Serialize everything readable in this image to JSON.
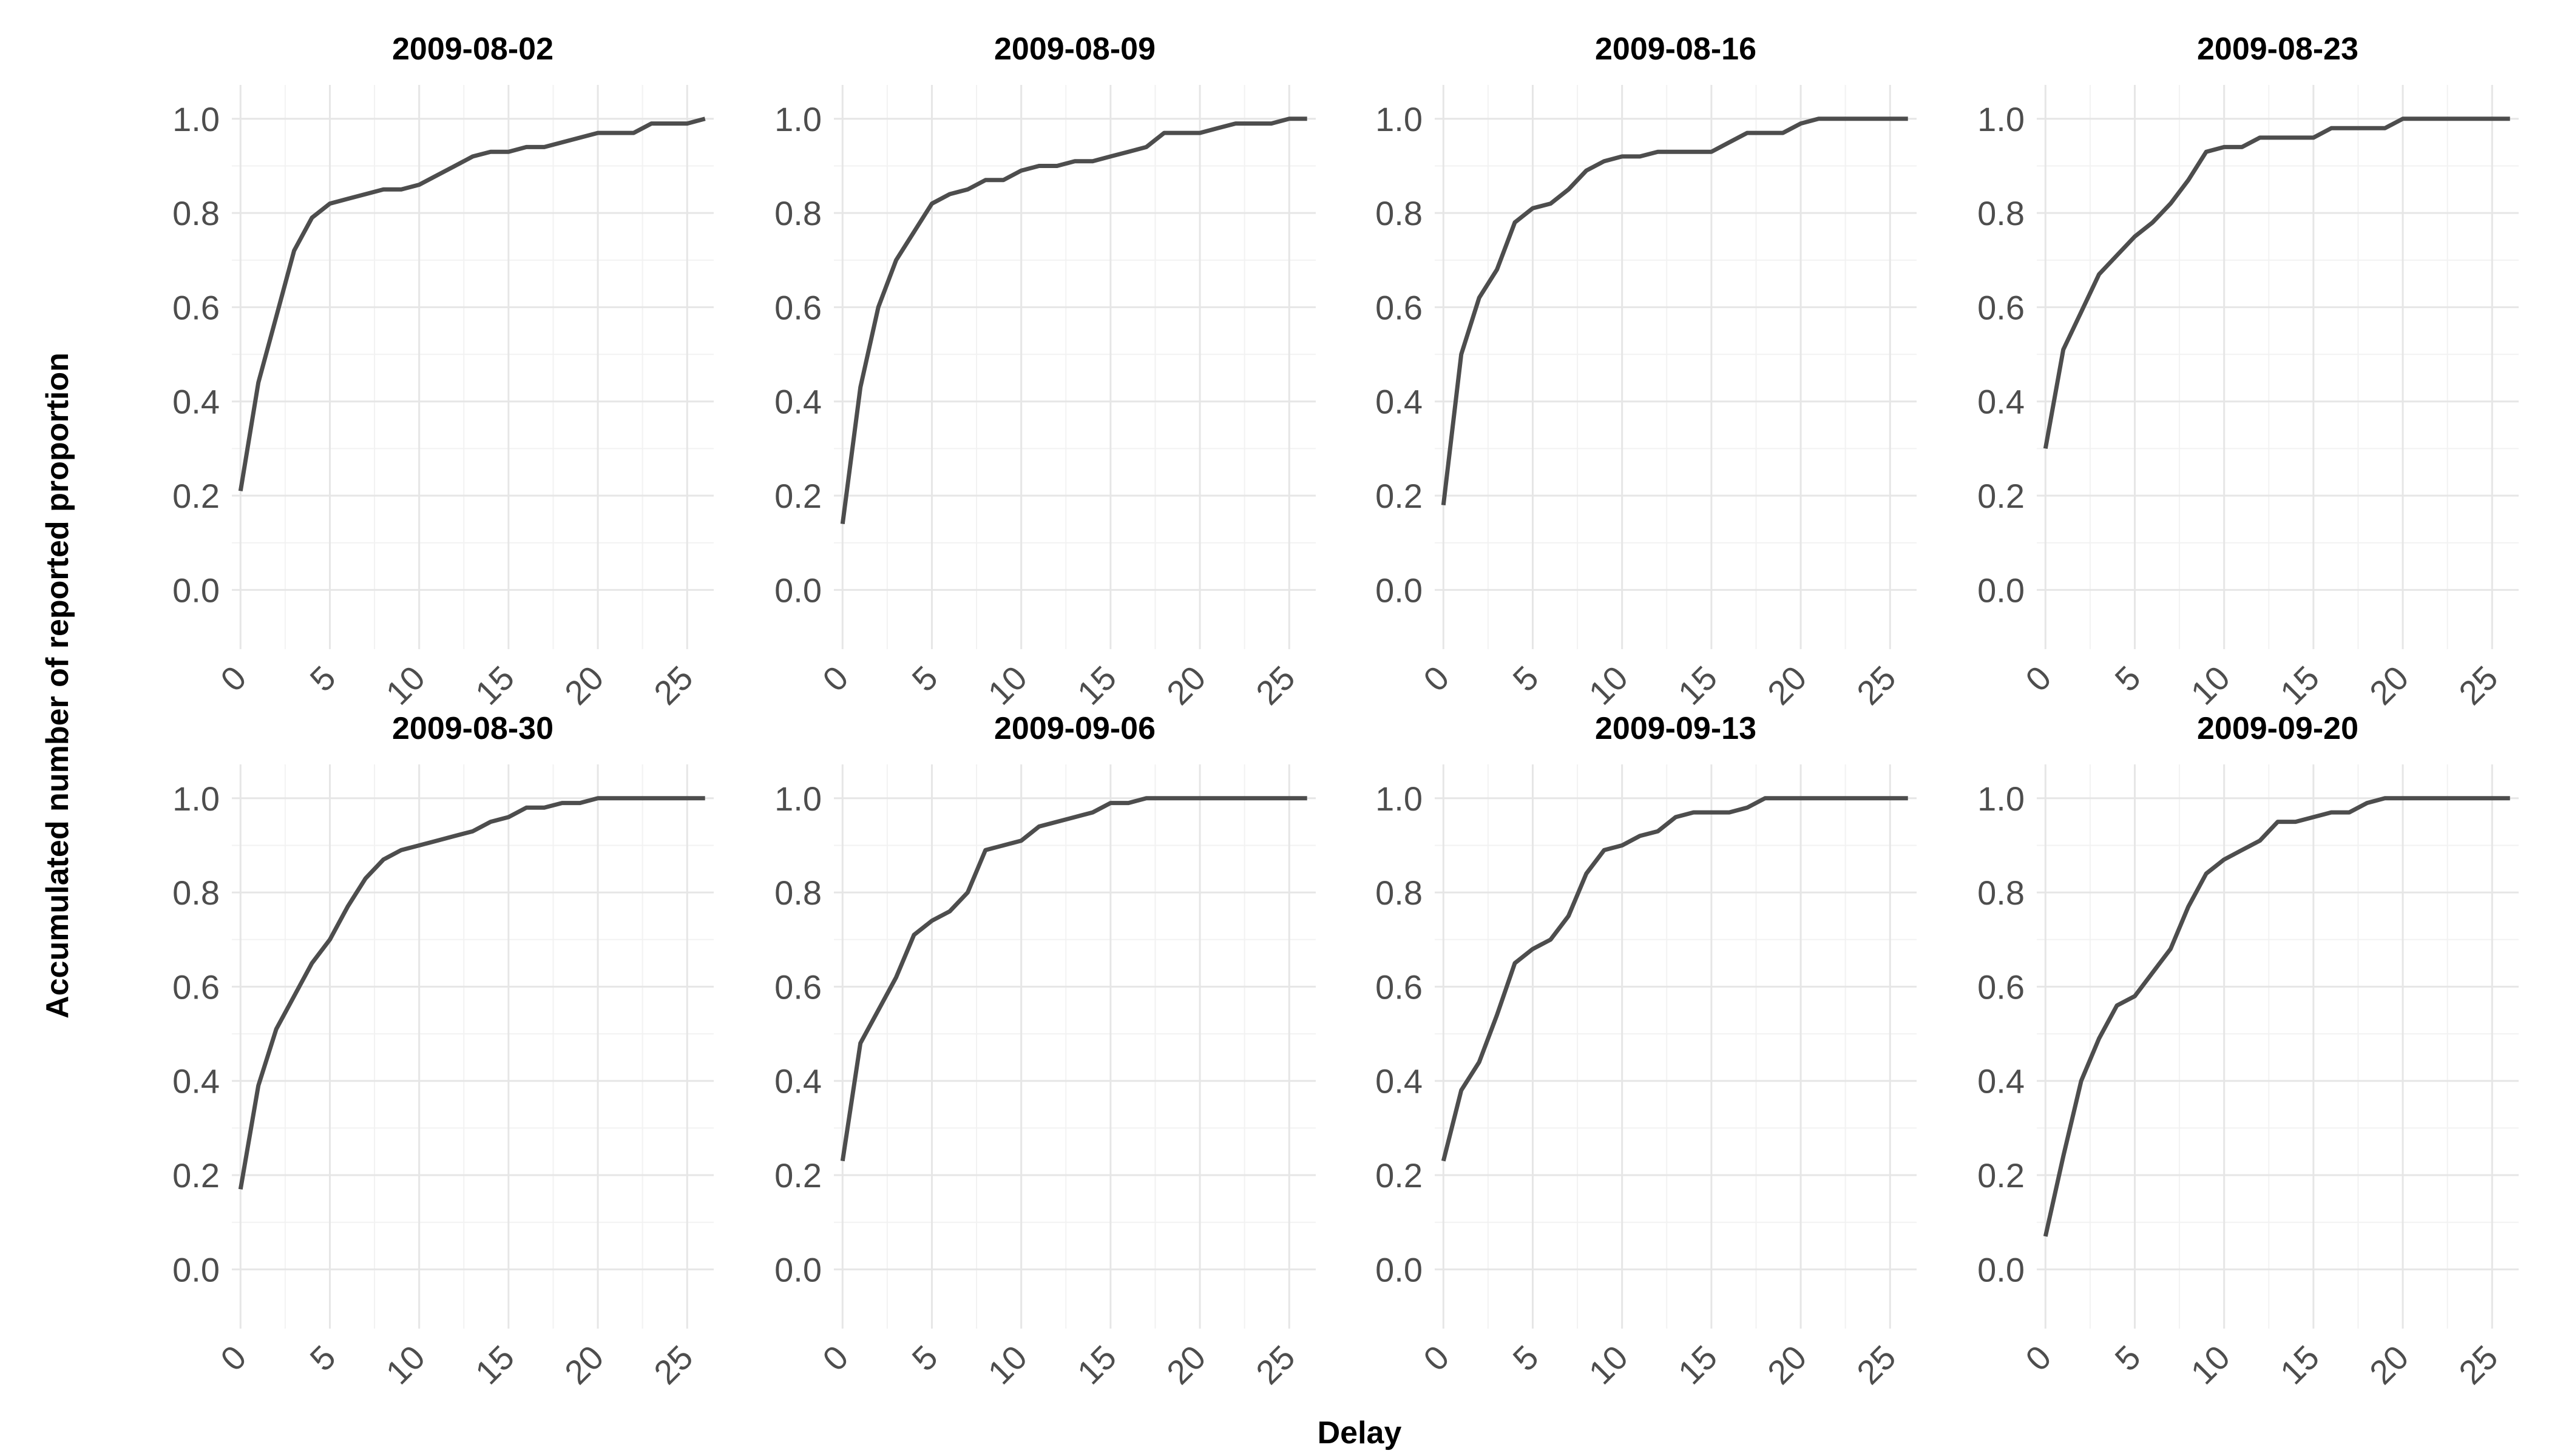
{
  "chart_data": {
    "type": "line",
    "xlabel": "Delay",
    "ylabel": "Accumulated number of reported proportion",
    "xlim": [
      0,
      26
    ],
    "ylim": [
      0,
      1.0
    ],
    "xticks": [
      "0",
      "5",
      "10",
      "15",
      "20",
      "25"
    ],
    "yticks": [
      "0.0",
      "0.2",
      "0.4",
      "0.6",
      "0.8",
      "1.0"
    ],
    "grid": true,
    "line_color": "#4d4d4d",
    "x": [
      0,
      1,
      2,
      3,
      4,
      5,
      6,
      7,
      8,
      9,
      10,
      11,
      12,
      13,
      14,
      15,
      16,
      17,
      18,
      19,
      20,
      21,
      22,
      23,
      24,
      25,
      26
    ],
    "panels": [
      {
        "title": "2009-08-02",
        "values": [
          0.21,
          0.44,
          0.58,
          0.72,
          0.79,
          0.82,
          0.83,
          0.84,
          0.85,
          0.85,
          0.86,
          0.88,
          0.9,
          0.92,
          0.93,
          0.93,
          0.94,
          0.94,
          0.95,
          0.96,
          0.97,
          0.97,
          0.97,
          0.99,
          0.99,
          0.99,
          1.0
        ]
      },
      {
        "title": "2009-08-09",
        "values": [
          0.14,
          0.43,
          0.6,
          0.7,
          0.76,
          0.82,
          0.84,
          0.85,
          0.87,
          0.87,
          0.89,
          0.9,
          0.9,
          0.91,
          0.91,
          0.92,
          0.93,
          0.94,
          0.97,
          0.97,
          0.97,
          0.98,
          0.99,
          0.99,
          0.99,
          1.0,
          1.0
        ]
      },
      {
        "title": "2009-08-16",
        "values": [
          0.18,
          0.5,
          0.62,
          0.68,
          0.78,
          0.81,
          0.82,
          0.85,
          0.89,
          0.91,
          0.92,
          0.92,
          0.93,
          0.93,
          0.93,
          0.93,
          0.95,
          0.97,
          0.97,
          0.97,
          0.99,
          1.0,
          1.0,
          1.0,
          1.0,
          1.0,
          1.0
        ]
      },
      {
        "title": "2009-08-23",
        "values": [
          0.3,
          0.51,
          0.59,
          0.67,
          0.71,
          0.75,
          0.78,
          0.82,
          0.87,
          0.93,
          0.94,
          0.94,
          0.96,
          0.96,
          0.96,
          0.96,
          0.98,
          0.98,
          0.98,
          0.98,
          1.0,
          1.0,
          1.0,
          1.0,
          1.0,
          1.0,
          1.0
        ]
      },
      {
        "title": "2009-08-30",
        "values": [
          0.17,
          0.39,
          0.51,
          0.58,
          0.65,
          0.7,
          0.77,
          0.83,
          0.87,
          0.89,
          0.9,
          0.91,
          0.92,
          0.93,
          0.95,
          0.96,
          0.98,
          0.98,
          0.99,
          0.99,
          1.0,
          1.0,
          1.0,
          1.0,
          1.0,
          1.0,
          1.0
        ]
      },
      {
        "title": "2009-09-06",
        "values": [
          0.23,
          0.48,
          0.55,
          0.62,
          0.71,
          0.74,
          0.76,
          0.8,
          0.89,
          0.9,
          0.91,
          0.94,
          0.95,
          0.96,
          0.97,
          0.99,
          0.99,
          1.0,
          1.0,
          1.0,
          1.0,
          1.0,
          1.0,
          1.0,
          1.0,
          1.0,
          1.0
        ]
      },
      {
        "title": "2009-09-13",
        "values": [
          0.23,
          0.38,
          0.44,
          0.54,
          0.65,
          0.68,
          0.7,
          0.75,
          0.84,
          0.89,
          0.9,
          0.92,
          0.93,
          0.96,
          0.97,
          0.97,
          0.97,
          0.98,
          1.0,
          1.0,
          1.0,
          1.0,
          1.0,
          1.0,
          1.0,
          1.0,
          1.0
        ]
      },
      {
        "title": "2009-09-20",
        "values": [
          0.07,
          0.24,
          0.4,
          0.49,
          0.56,
          0.58,
          0.63,
          0.68,
          0.77,
          0.84,
          0.87,
          0.89,
          0.91,
          0.95,
          0.95,
          0.96,
          0.97,
          0.97,
          0.99,
          1.0,
          1.0,
          1.0,
          1.0,
          1.0,
          1.0,
          1.0,
          1.0
        ]
      }
    ]
  }
}
